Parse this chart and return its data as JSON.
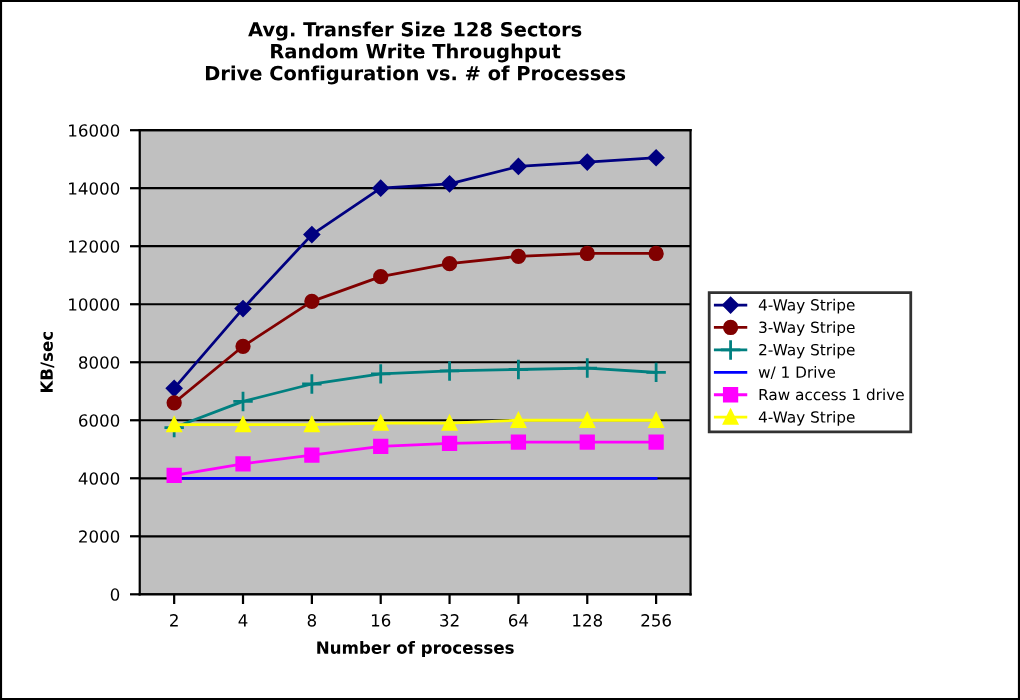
{
  "chart_data": {
    "type": "line",
    "title": "Avg. Transfer Size 128 Sectors\nRandom Write Throughput\nDrive Configuration vs. # of Processes",
    "xlabel": "Number of processes",
    "ylabel": "KB/sec",
    "categories": [
      "2",
      "4",
      "8",
      "16",
      "32",
      "64",
      "128",
      "256"
    ],
    "series": [
      {
        "name": "4-Way Stripe",
        "color": "#000080",
        "marker": "diamond",
        "values": [
          7100,
          9850,
          12400,
          14000,
          14150,
          14750,
          14900,
          15050
        ]
      },
      {
        "name": "3-Way Stripe",
        "color": "#800000",
        "marker": "circle",
        "values": [
          6600,
          8550,
          10100,
          10950,
          11400,
          11650,
          11750,
          11750
        ]
      },
      {
        "name": "2-Way Stripe",
        "color": "#008080",
        "marker": "cross",
        "values": [
          5750,
          6650,
          7250,
          7600,
          7700,
          7750,
          7800,
          7650
        ]
      },
      {
        "name": "w/ 1 Drive",
        "color": "#0000ff",
        "marker": "none",
        "values": [
          4000,
          4000,
          4000,
          4000,
          4000,
          4000,
          4000,
          4000
        ]
      },
      {
        "name": "Raw access 1 drive",
        "color": "#ff00ff",
        "marker": "square",
        "values": [
          4100,
          4500,
          4800,
          5100,
          5200,
          5250,
          5250,
          5250
        ]
      },
      {
        "name": "4-Way Stripe",
        "color": "#ffff00",
        "marker": "triangle",
        "values": [
          5850,
          5850,
          5850,
          5900,
          5900,
          6000,
          6000,
          6000
        ]
      }
    ],
    "ylim": [
      0,
      16000
    ],
    "yticks": [
      0,
      2000,
      4000,
      6000,
      8000,
      10000,
      12000,
      14000,
      16000
    ],
    "grid": "y",
    "legend": "right"
  }
}
